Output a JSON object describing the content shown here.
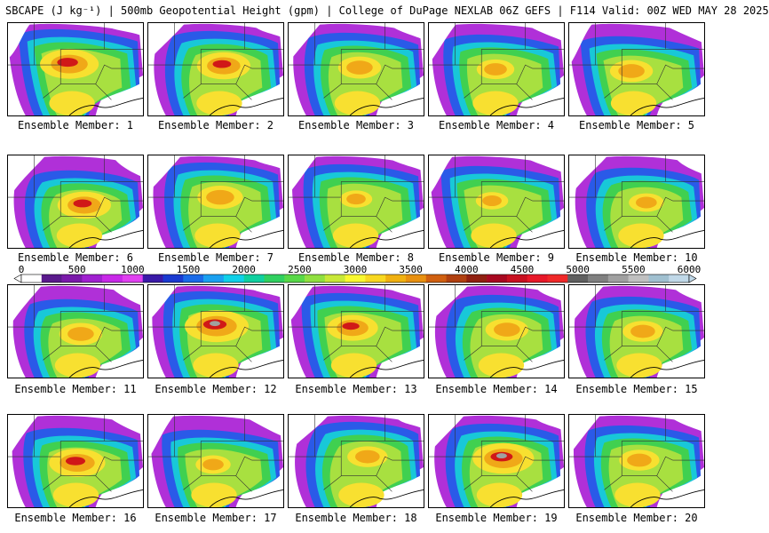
{
  "header": {
    "title": "SBCAPE (J kg⁻¹) | 500mb Geopotential Height (gpm) | College of DuPage NEXLAB 06Z GEFS | F114 Valid: 00Z WED MAY 28 2025"
  },
  "members": [
    {
      "label": "Ensemble Member: 1",
      "intensity": 0.85
    },
    {
      "label": "Ensemble Member: 2",
      "intensity": 0.75
    },
    {
      "label": "Ensemble Member: 3",
      "intensity": 0.55
    },
    {
      "label": "Ensemble Member: 4",
      "intensity": 0.45
    },
    {
      "label": "Ensemble Member: 5",
      "intensity": 0.55
    },
    {
      "label": "Ensemble Member: 6",
      "intensity": 0.75
    },
    {
      "label": "Ensemble Member: 7",
      "intensity": 0.6
    },
    {
      "label": "Ensemble Member: 8",
      "intensity": 0.35
    },
    {
      "label": "Ensemble Member: 9",
      "intensity": 0.35
    },
    {
      "label": "Ensemble Member: 10",
      "intensity": 0.4
    },
    {
      "label": "Ensemble Member: 11",
      "intensity": 0.55
    },
    {
      "label": "Ensemble Member: 12",
      "intensity": 0.95
    },
    {
      "label": "Ensemble Member: 13",
      "intensity": 0.7
    },
    {
      "label": "Ensemble Member: 14",
      "intensity": 0.55
    },
    {
      "label": "Ensemble Member: 15",
      "intensity": 0.5
    },
    {
      "label": "Ensemble Member: 16",
      "intensity": 0.8
    },
    {
      "label": "Ensemble Member: 17",
      "intensity": 0.4
    },
    {
      "label": "Ensemble Member: 18",
      "intensity": 0.5
    },
    {
      "label": "Ensemble Member: 19",
      "intensity": 0.9
    },
    {
      "label": "Ensemble Member: 20",
      "intensity": 0.5
    }
  ],
  "colorbar": {
    "ticks": [
      "0",
      "500",
      "1000",
      "1500",
      "2000",
      "2500",
      "3000",
      "3500",
      "4000",
      "4500",
      "5000",
      "5500",
      "6000"
    ],
    "colors": [
      "#ffffff",
      "#5a1a8c",
      "#7a1aaa",
      "#a020d0",
      "#c828e8",
      "#e040f0",
      "#3a1aa8",
      "#1a3ad0",
      "#1a6ae8",
      "#1aa0f0",
      "#10d0e8",
      "#10d0a0",
      "#30d060",
      "#58d848",
      "#90e040",
      "#c8e838",
      "#f8f830",
      "#f8d820",
      "#f0b010",
      "#e89010",
      "#d06010",
      "#b04010",
      "#902010",
      "#a80820",
      "#c81020",
      "#e81828",
      "#f02828",
      "#606060",
      "#808080",
      "#a0a0a0",
      "#c0c0c0",
      "#a0c0d0",
      "#c0d8e8"
    ]
  }
}
